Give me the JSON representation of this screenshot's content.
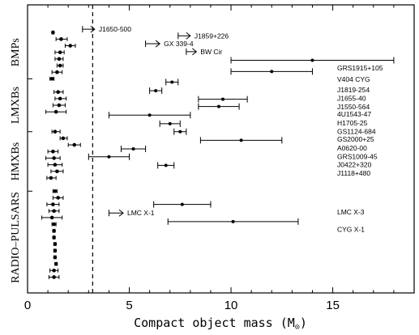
{
  "chart_data": {
    "type": "scatter",
    "xlabel": "Compact object mass (M",
    "xlabel_symbol": "⊙",
    "xlabel_close": ")",
    "xlim": [
      0,
      19
    ],
    "x_ticks": [
      {
        "value": 0,
        "label": "0"
      },
      {
        "value": 5,
        "label": "5"
      },
      {
        "value": 10,
        "label": "10"
      },
      {
        "value": 15,
        "label": "15"
      }
    ],
    "threshold_line": 3.2,
    "groups": [
      {
        "name": "BMPs",
        "top_row": 0,
        "bottom_row": 8
      },
      {
        "name": "LMXBs",
        "top_row": 8,
        "bottom_row": 16
      },
      {
        "name": "HMXBs",
        "top_row": 16,
        "bottom_row": 25
      },
      {
        "name": "RADIO–PULSARS",
        "top_row": 25,
        "bottom_row": 39
      }
    ],
    "ns_points": [
      {
        "row": 1,
        "value": 1.25,
        "lo": 1.2,
        "hi": 1.3
      },
      {
        "row": 2,
        "value": 1.65,
        "lo": 1.4,
        "hi": 1.95
      },
      {
        "row": 3,
        "value": 2.1,
        "lo": 1.85,
        "hi": 2.35
      },
      {
        "row": 4,
        "value": 1.6,
        "lo": 1.35,
        "hi": 1.8
      },
      {
        "row": 5,
        "value": 1.55,
        "lo": 1.35,
        "hi": 1.75
      },
      {
        "row": 6,
        "value": 1.6,
        "lo": 1.45,
        "hi": 1.75
      },
      {
        "row": 7,
        "value": 1.45,
        "lo": 1.2,
        "hi": 1.7
      },
      {
        "row": 8,
        "value": 1.2,
        "lo": 1.1,
        "hi": 1.3
      },
      {
        "row": 10,
        "value": 1.5,
        "lo": 1.3,
        "hi": 1.75
      },
      {
        "row": 11,
        "value": 1.6,
        "lo": 1.35,
        "hi": 1.9
      },
      {
        "row": 12,
        "value": 1.55,
        "lo": 1.25,
        "hi": 1.85
      },
      {
        "row": 13,
        "value": 1.4,
        "lo": 0.9,
        "hi": 1.9
      },
      {
        "row": 16,
        "value": 1.35,
        "lo": 1.2,
        "hi": 1.6
      },
      {
        "row": 17,
        "value": 1.75,
        "lo": 1.6,
        "hi": 1.95
      },
      {
        "row": 18,
        "value": 2.3,
        "lo": 2.0,
        "hi": 2.6
      },
      {
        "row": 19,
        "value": 1.25,
        "lo": 1.0,
        "hi": 1.5
      },
      {
        "row": 20,
        "value": 1.3,
        "lo": 0.9,
        "hi": 1.6
      },
      {
        "row": 21,
        "value": 1.35,
        "lo": 1.0,
        "hi": 1.7
      },
      {
        "row": 22,
        "value": 1.45,
        "lo": 1.15,
        "hi": 1.75
      },
      {
        "row": 23,
        "value": 1.15,
        "lo": 0.95,
        "hi": 1.4
      },
      {
        "row": 25,
        "value": 1.35,
        "lo": 1.25,
        "hi": 1.45
      },
      {
        "row": 26,
        "value": 1.5,
        "lo": 1.25,
        "hi": 1.75
      },
      {
        "row": 27,
        "value": 1.25,
        "lo": 0.95,
        "hi": 1.55
      },
      {
        "row": 28,
        "value": 1.3,
        "lo": 1.05,
        "hi": 1.55
      },
      {
        "row": 29,
        "value": 1.2,
        "lo": 0.7,
        "hi": 1.7
      },
      {
        "row": 30,
        "value": 1.3,
        "lo": 1.2,
        "hi": 1.4
      },
      {
        "row": 31,
        "value": 1.3,
        "lo": 1.25,
        "hi": 1.35
      },
      {
        "row": 32,
        "value": 1.3,
        "lo": 1.25,
        "hi": 1.35
      },
      {
        "row": 33,
        "value": 1.35,
        "lo": 1.3,
        "hi": 1.4
      },
      {
        "row": 34,
        "value": 1.35,
        "lo": 1.3,
        "hi": 1.4
      },
      {
        "row": 35,
        "value": 1.35,
        "lo": 1.3,
        "hi": 1.4
      },
      {
        "row": 36,
        "value": 1.4,
        "lo": 1.35,
        "hi": 1.45
      },
      {
        "row": 37,
        "value": 1.3,
        "lo": 1.1,
        "hi": 1.5
      },
      {
        "row": 38,
        "value": 1.3,
        "lo": 1.05,
        "hi": 1.55
      }
    ],
    "bh_points": [
      {
        "name": "J1650-500",
        "row": 0.5,
        "kind": "lower",
        "start": 2.7,
        "end": 3.3
      },
      {
        "name": "J1859+226",
        "row": 1.5,
        "kind": "lower",
        "start": 7.4,
        "end": 8.0
      },
      {
        "name": "GX 339-4",
        "row": 2.7,
        "kind": "lower",
        "start": 5.8,
        "end": 6.5
      },
      {
        "name": "BW Cir",
        "row": 3.9,
        "kind": "lower",
        "start": 7.8,
        "end": 8.3
      },
      {
        "name": "GRS1915+105",
        "row": 5.2,
        "kind": "point",
        "value": 14.0,
        "lo": 10.0,
        "hi": 18.0
      },
      {
        "name": "V404 CYG",
        "row": 6.9,
        "kind": "point",
        "value": 12.0,
        "lo": 10.0,
        "hi": 14.0
      },
      {
        "name": "J1819-254",
        "row": 8.5,
        "kind": "point",
        "value": 7.1,
        "lo": 6.8,
        "hi": 7.4
      },
      {
        "name": "J1655-40",
        "row": 9.8,
        "kind": "point",
        "value": 6.3,
        "lo": 6.0,
        "hi": 6.6
      },
      {
        "name": "J1550-564",
        "row": 11.1,
        "kind": "point",
        "value": 9.6,
        "lo": 8.4,
        "hi": 10.8
      },
      {
        "name": "4U1543-47",
        "row": 12.2,
        "kind": "point",
        "value": 9.4,
        "lo": 8.4,
        "hi": 10.4
      },
      {
        "name": "H1705-25",
        "row": 13.5,
        "kind": "point",
        "value": 6.0,
        "lo": 4.0,
        "hi": 8.0
      },
      {
        "name": "GS1124-684",
        "row": 14.8,
        "kind": "point",
        "value": 7.0,
        "lo": 6.5,
        "hi": 7.5
      },
      {
        "name": "GS2000+25",
        "row": 16.0,
        "kind": "point",
        "value": 7.5,
        "lo": 7.2,
        "hi": 7.8
      },
      {
        "name": "A0620-00",
        "row": 17.3,
        "kind": "point",
        "value": 10.5,
        "lo": 8.5,
        "hi": 12.5
      },
      {
        "name": "GRS1009-45",
        "row": 18.6,
        "kind": "point",
        "value": 5.2,
        "lo": 4.6,
        "hi": 5.8
      },
      {
        "name": "J0422+320",
        "row": 19.8,
        "kind": "point",
        "value": 4.0,
        "lo": 3.0,
        "hi": 5.0
      },
      {
        "name": "J1118+480",
        "row": 21.1,
        "kind": "point",
        "value": 6.8,
        "lo": 6.4,
        "hi": 7.2
      },
      {
        "name": "LMC X-3",
        "row": 27.0,
        "kind": "point",
        "value": 7.6,
        "lo": 6.2,
        "hi": 9.0
      },
      {
        "name": "LMC X-1",
        "row": 28.3,
        "kind": "lower",
        "start": 4.0,
        "end": 4.7
      },
      {
        "name": "CYG X-1",
        "row": 29.6,
        "kind": "point",
        "value": 10.1,
        "lo": 6.9,
        "hi": 13.3
      }
    ]
  }
}
